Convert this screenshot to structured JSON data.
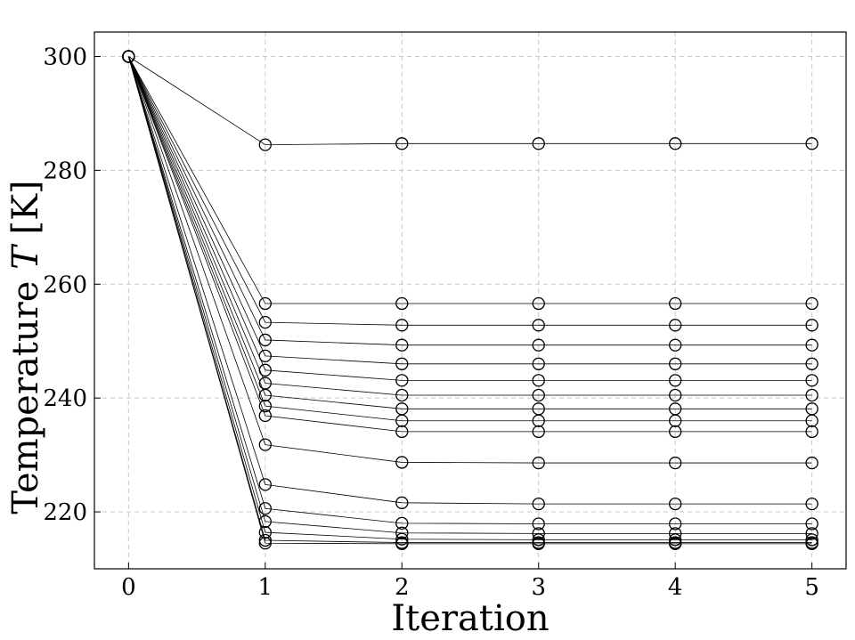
{
  "chart_data": {
    "type": "line",
    "title": "",
    "xlabel": "Iteration",
    "ylabel": "Temperature T [K]",
    "ylabel_text": "Temperature ",
    "ylabel_symbol": "T",
    "ylabel_unit": " [K]",
    "x": [
      0,
      1,
      2,
      3,
      4,
      5
    ],
    "xticks": [
      "0",
      "1",
      "2",
      "3",
      "4",
      "5"
    ],
    "yticks": [
      "220",
      "240",
      "260",
      "280",
      "300"
    ],
    "xlim": [
      -0.25,
      5.25
    ],
    "ylim": [
      210,
      304.3
    ],
    "grid": true,
    "legend": "none",
    "line_color": "#000000",
    "marker": "open-circle",
    "series": [
      {
        "values": [
          300,
          284.5,
          284.7,
          284.7,
          284.7,
          284.7
        ]
      },
      {
        "values": [
          300,
          256.6,
          256.6,
          256.6,
          256.6,
          256.6
        ]
      },
      {
        "values": [
          300,
          253.3,
          252.8,
          252.8,
          252.8,
          252.8
        ]
      },
      {
        "values": [
          300,
          250.2,
          249.3,
          249.3,
          249.3,
          249.3
        ]
      },
      {
        "values": [
          300,
          247.4,
          246.0,
          246.0,
          246.0,
          246.0
        ]
      },
      {
        "values": [
          300,
          244.9,
          243.1,
          243.1,
          243.1,
          243.1
        ]
      },
      {
        "values": [
          300,
          242.6,
          240.5,
          240.5,
          240.5,
          240.5
        ]
      },
      {
        "values": [
          300,
          240.5,
          238.1,
          238.1,
          238.1,
          238.1
        ]
      },
      {
        "values": [
          300,
          238.6,
          236.0,
          236.0,
          236.0,
          236.0
        ]
      },
      {
        "values": [
          300,
          236.9,
          234.1,
          234.1,
          234.1,
          234.1
        ]
      },
      {
        "values": [
          300,
          231.8,
          228.7,
          228.6,
          228.6,
          228.6
        ]
      },
      {
        "values": [
          300,
          224.8,
          221.6,
          221.4,
          221.4,
          221.4
        ]
      },
      {
        "values": [
          300,
          220.6,
          218.0,
          217.9,
          217.9,
          217.9
        ]
      },
      {
        "values": [
          300,
          218.3,
          216.3,
          216.2,
          216.2,
          216.2
        ]
      },
      {
        "values": [
          300,
          216.4,
          215.2,
          215.1,
          215.1,
          215.1
        ]
      },
      {
        "values": [
          300,
          215.0,
          214.6,
          214.6,
          214.6,
          214.6
        ]
      },
      {
        "values": [
          300,
          214.5,
          214.4,
          214.4,
          214.4,
          214.4
        ]
      }
    ]
  }
}
